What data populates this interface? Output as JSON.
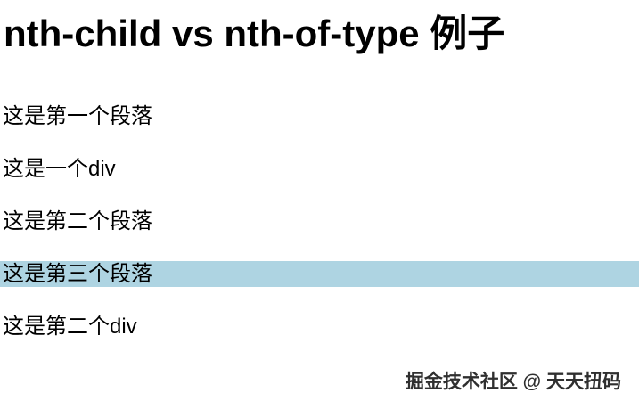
{
  "page": {
    "title": "nth-child vs nth-of-type 例子",
    "paragraphs": [
      {
        "text": "这是第一个段落",
        "highlighted": false
      },
      {
        "text": "这是一个div",
        "highlighted": false
      },
      {
        "text": "这是第二个段落",
        "highlighted": false
      },
      {
        "text": "这是第三个段落",
        "highlighted": true
      },
      {
        "text": "这是第二个div",
        "highlighted": false
      }
    ],
    "highlight_color": "#aed4e2",
    "watermark": "掘金技术社区 @ 天天扭码"
  }
}
